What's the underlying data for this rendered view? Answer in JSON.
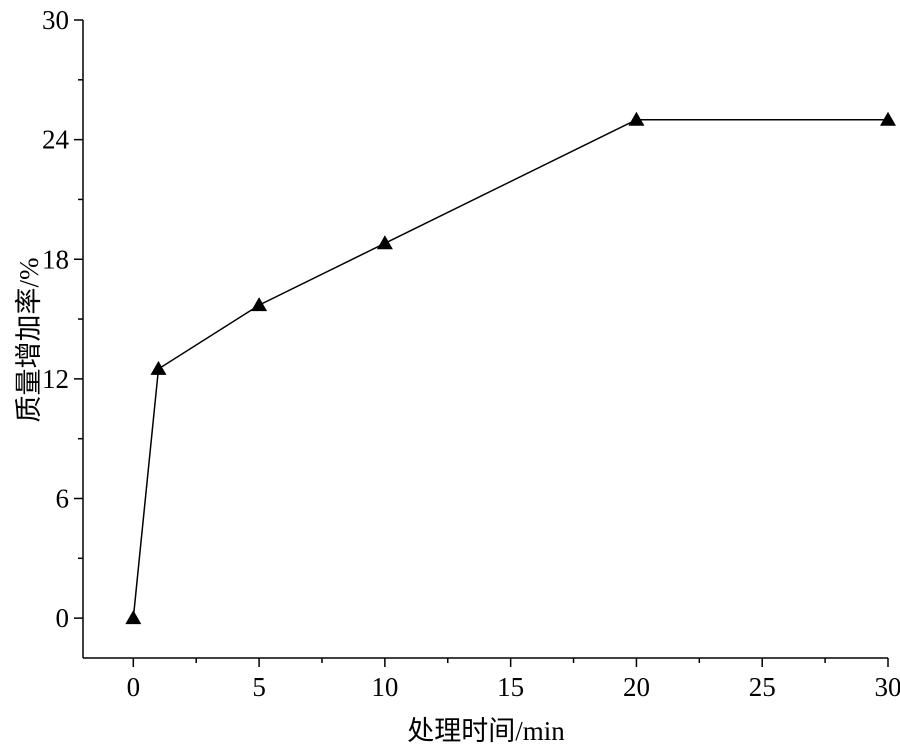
{
  "chart_data": {
    "type": "line",
    "x_label": "处理时间/min",
    "y_label": "质量增加率/%",
    "x": [
      0,
      1,
      5,
      10,
      20,
      30
    ],
    "series": [
      {
        "color": "#000000",
        "marker": "triangle",
        "values": [
          0,
          12.5,
          15.7,
          18.8,
          25,
          25
        ]
      }
    ],
    "xlim": [
      -2,
      30
    ],
    "xticks": [
      0,
      5,
      10,
      15,
      20,
      25,
      30
    ],
    "ylim": [
      -2,
      30
    ],
    "yticks": [
      0,
      6,
      12,
      18,
      24,
      30
    ],
    "grid": false
  }
}
